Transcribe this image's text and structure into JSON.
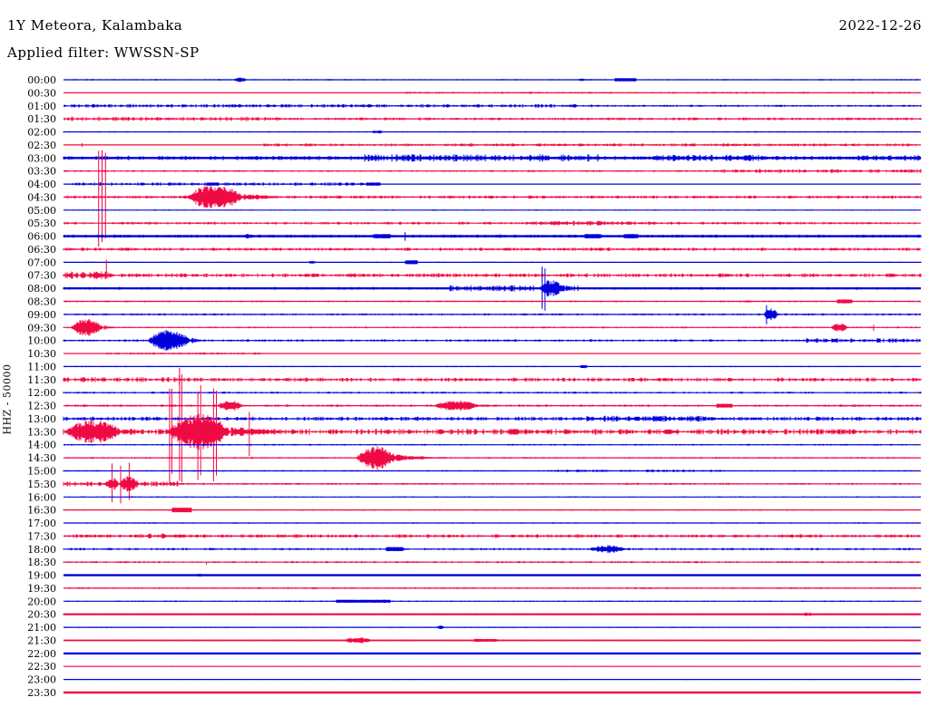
{
  "header": {
    "station": "1Y Meteora, Kalambaka",
    "filter": "Applied filter: WWSSN-SP",
    "date": "2022-12-26"
  },
  "y_axis_label": "HHZ - 50000",
  "chart_data": {
    "type": "line",
    "variant": "helicorder-seismogram",
    "title": "1Y Meteora, Kalambaka",
    "subtitle": "Applied filter: WWSSN-SP",
    "date": "2022-12-26",
    "scale_label": "HHZ - 50000",
    "minutes_per_row": 30,
    "legend_position": "none",
    "grid": false,
    "colors": {
      "even_rows": "#0000dc",
      "odd_rows": "#f00a44"
    },
    "rows": [
      {
        "time": "00:00",
        "base": 1.2,
        "noise": [
          [
            0,
            30,
            0.35
          ]
        ],
        "events": [
          {
            "k": "burst",
            "t": 5.95,
            "d": 0.5,
            "a": 2.5
          },
          {
            "k": "burst",
            "t": 18.0,
            "d": 0.3,
            "a": 1.5
          },
          {
            "k": "dash",
            "t": 19.3,
            "d": 0.75,
            "a": 1.8
          }
        ]
      },
      {
        "time": "00:30",
        "base": 1.2,
        "noise": [
          [
            12,
            30,
            0.45
          ]
        ],
        "events": []
      },
      {
        "time": "01:00",
        "base": 1.2,
        "noise": [
          [
            0,
            18.5,
            0.85
          ],
          [
            18.5,
            30,
            0.5
          ]
        ],
        "events": []
      },
      {
        "time": "01:30",
        "base": 1.2,
        "noise": [
          [
            0,
            7.5,
            1.0
          ],
          [
            7.5,
            30,
            0.65
          ]
        ],
        "events": []
      },
      {
        "time": "02:00",
        "base": 1.2,
        "noise": [
          [
            0,
            30,
            0.3
          ]
        ],
        "events": [
          {
            "k": "burst",
            "t": 10.75,
            "d": 0.45,
            "a": 2
          }
        ]
      },
      {
        "time": "02:30",
        "base": 1.2,
        "noise": [
          [
            7,
            30,
            0.7
          ]
        ],
        "events": [
          {
            "k": "spike",
            "t": 0.65,
            "a": 2.5,
            "n": 1
          }
        ]
      },
      {
        "time": "03:00",
        "base": 2.4,
        "noise": [
          [
            0,
            30,
            1.0
          ],
          [
            10.5,
            18.7,
            1.7
          ],
          [
            20.6,
            24.5,
            1.5
          ],
          [
            27.5,
            30,
            1.4
          ]
        ],
        "events": []
      },
      {
        "time": "03:30",
        "base": 1.2,
        "noise": [
          [
            0,
            30,
            0.45
          ],
          [
            23,
            30,
            0.9
          ]
        ],
        "events": []
      },
      {
        "time": "04:00",
        "base": 1.2,
        "noise": [
          [
            0.3,
            11,
            0.85
          ]
        ],
        "events": [
          {
            "k": "dash",
            "t": 5.0,
            "d": 0.45,
            "a": 1.7
          },
          {
            "k": "dash",
            "t": 10.6,
            "d": 0.5,
            "a": 1.7
          }
        ]
      },
      {
        "time": "04:30",
        "base": 1.2,
        "noise": [
          [
            0,
            30,
            0.75
          ]
        ],
        "events": [
          {
            "k": "spike",
            "t": 1.35,
            "a": 56,
            "n": 3,
            "s": 0.12
          },
          {
            "k": "burst",
            "t": 4.3,
            "d": 2.0,
            "a": 14,
            "tail": 1.6
          }
        ]
      },
      {
        "time": "05:00",
        "base": 1.2,
        "noise": [
          [
            0,
            30,
            0.3
          ]
        ],
        "events": []
      },
      {
        "time": "05:30",
        "base": 1.2,
        "noise": [
          [
            0,
            30,
            0.65
          ],
          [
            16,
            20.5,
            1.1
          ]
        ],
        "events": []
      },
      {
        "time": "06:00",
        "base": 2.4,
        "noise": [
          [
            0,
            30,
            0.75
          ]
        ],
        "events": [
          {
            "k": "burst",
            "t": 6.3,
            "d": 0.4,
            "a": 3
          },
          {
            "k": "dash",
            "t": 10.85,
            "d": 0.6,
            "a": 2.4
          },
          {
            "k": "spike",
            "t": 11.95,
            "a": 5,
            "n": 1
          },
          {
            "k": "dash",
            "t": 18.25,
            "d": 0.55,
            "a": 2.4
          },
          {
            "k": "dash",
            "t": 19.6,
            "d": 0.5,
            "a": 2.4
          }
        ]
      },
      {
        "time": "06:30",
        "base": 1.2,
        "noise": [
          [
            0,
            30,
            0.75
          ]
        ],
        "events": []
      },
      {
        "time": "07:00",
        "base": 1.2,
        "noise": [
          [
            0,
            30,
            0.3
          ]
        ],
        "events": [
          {
            "k": "burst",
            "t": 8.55,
            "d": 0.3,
            "a": 2
          },
          {
            "k": "dash",
            "t": 11.95,
            "d": 0.45,
            "a": 2.2
          }
        ]
      },
      {
        "time": "07:30",
        "base": 1.2,
        "noise": [
          [
            0,
            30,
            0.95
          ],
          [
            0,
            1.6,
            1.9
          ]
        ],
        "events": [
          {
            "k": "spike",
            "t": 1.5,
            "a": 20,
            "n": 1,
            "dir": "up"
          },
          {
            "k": "burst",
            "t": 0.85,
            "d": 0.7,
            "a": 3
          }
        ]
      },
      {
        "time": "08:00",
        "base": 2.2,
        "noise": [
          [
            0,
            30,
            0.65
          ],
          [
            13.5,
            18,
            1.4
          ]
        ],
        "events": [
          {
            "k": "burst",
            "t": 16.65,
            "d": 0.85,
            "a": 10
          },
          {
            "k": "spike",
            "t": 16.8,
            "a": 25,
            "n": 2,
            "s": 0.1
          }
        ]
      },
      {
        "time": "08:30",
        "base": 1.2,
        "noise": [
          [
            0,
            30,
            0.4
          ]
        ],
        "events": [
          {
            "k": "dash",
            "t": 27.05,
            "d": 0.55,
            "a": 2.2
          },
          {
            "k": "burst",
            "t": 23.8,
            "d": 0.3,
            "a": 1.5
          }
        ]
      },
      {
        "time": "09:00",
        "base": 1.2,
        "noise": [
          [
            0,
            30,
            0.5
          ]
        ],
        "events": [
          {
            "k": "burst",
            "t": 24.5,
            "d": 0.5,
            "a": 8
          },
          {
            "k": "spike",
            "t": 24.6,
            "a": 13,
            "n": 1
          }
        ]
      },
      {
        "time": "09:30",
        "base": 1.2,
        "noise": [
          [
            0,
            30,
            0.4
          ]
        ],
        "events": [
          {
            "k": "burst",
            "t": 0.25,
            "d": 1.15,
            "a": 10,
            "tail": 0.5
          },
          {
            "k": "burst",
            "t": 26.85,
            "d": 0.6,
            "a": 5
          },
          {
            "k": "spike",
            "t": 28.35,
            "a": 4,
            "n": 1
          }
        ]
      },
      {
        "time": "10:00",
        "base": 1.2,
        "noise": [
          [
            0,
            30,
            0.55
          ],
          [
            26,
            30,
            1.1
          ]
        ],
        "events": [
          {
            "k": "burst",
            "t": 2.95,
            "d": 1.5,
            "a": 12,
            "tail": 0.5
          }
        ]
      },
      {
        "time": "10:30",
        "base": 1.2,
        "noise": [
          [
            1.5,
            7,
            0.55
          ]
        ],
        "events": []
      },
      {
        "time": "11:00",
        "base": 1.2,
        "noise": [
          [
            0,
            30,
            0.3
          ]
        ],
        "events": [
          {
            "k": "burst",
            "t": 18.05,
            "d": 0.3,
            "a": 2.5
          }
        ]
      },
      {
        "time": "11:30",
        "base": 1.2,
        "noise": [
          [
            0,
            4,
            1.25
          ],
          [
            4,
            30,
            0.95
          ]
        ],
        "events": [
          {
            "k": "spike",
            "t": 4.05,
            "a": 6,
            "n": 1
          }
        ]
      },
      {
        "time": "12:00",
        "base": 1.2,
        "noise": [
          [
            0,
            30,
            0.5
          ]
        ],
        "events": []
      },
      {
        "time": "12:30",
        "base": 1.2,
        "noise": [
          [
            0,
            30,
            0.55
          ]
        ],
        "events": [
          {
            "k": "burst",
            "t": 5.35,
            "d": 0.95,
            "a": 6
          },
          {
            "k": "burst",
            "t": 12.95,
            "d": 1.6,
            "a": 6,
            "tail": 0.9
          },
          {
            "k": "dash",
            "t": 22.85,
            "d": 0.55,
            "a": 2.2
          }
        ]
      },
      {
        "time": "13:00",
        "base": 1.2,
        "noise": [
          [
            0,
            30,
            0.95
          ],
          [
            18.3,
            22.5,
            1.4
          ]
        ],
        "events": []
      },
      {
        "time": "13:30",
        "base": 1.2,
        "noise": [
          [
            0,
            30,
            1.4
          ]
        ],
        "events": [
          {
            "k": "burst",
            "t": 0.05,
            "d": 2.0,
            "a": 13,
            "tail": 0.6
          },
          {
            "k": "burst",
            "t": 3.65,
            "d": 2.2,
            "a": 20,
            "tail": 2.3
          },
          {
            "k": "spike",
            "t": 3.75,
            "a": 62,
            "n": 2,
            "s": 0.08
          },
          {
            "k": "spike",
            "t": 4.1,
            "a": 72,
            "n": 2,
            "s": 0.08
          },
          {
            "k": "spike",
            "t": 4.75,
            "a": 60,
            "n": 2,
            "s": 0.1
          },
          {
            "k": "spike",
            "t": 5.3,
            "a": 55,
            "n": 2,
            "s": 0.1
          },
          {
            "k": "spike",
            "t": 6.5,
            "a": 30,
            "n": 1
          },
          {
            "k": "burst",
            "t": 15.5,
            "d": 0.5,
            "a": 5
          },
          {
            "k": "burst",
            "t": 20.9,
            "d": 0.5,
            "a": 3
          }
        ]
      },
      {
        "time": "14:00",
        "base": 1.2,
        "noise": [
          [
            0,
            30,
            0.4
          ]
        ],
        "events": []
      },
      {
        "time": "14:30",
        "base": 1.2,
        "noise": [
          [
            0,
            30,
            0.4
          ]
        ],
        "events": [
          {
            "k": "burst",
            "t": 10.25,
            "d": 1.4,
            "a": 13,
            "tail": 1.8
          }
        ]
      },
      {
        "time": "15:00",
        "base": 1.2,
        "noise": [
          [
            0,
            30,
            0.35
          ],
          [
            17,
            23,
            0.65
          ]
        ],
        "events": []
      },
      {
        "time": "15:30",
        "base": 1.2,
        "noise": [
          [
            0,
            4,
            1.15
          ],
          [
            4,
            30,
            0.45
          ]
        ],
        "events": [
          {
            "k": "burst",
            "t": 1.45,
            "d": 0.5,
            "a": 7
          },
          {
            "k": "burst",
            "t": 1.95,
            "d": 0.7,
            "a": 9
          },
          {
            "k": "spike",
            "t": 2.0,
            "a": 24,
            "n": 3,
            "s": 0.3
          }
        ]
      },
      {
        "time": "16:00",
        "base": 1.2,
        "noise": [
          [
            0,
            30,
            0.3
          ]
        ],
        "events": []
      },
      {
        "time": "16:30",
        "base": 1.2,
        "noise": [
          [
            0,
            30,
            0.35
          ]
        ],
        "events": [
          {
            "k": "dash",
            "t": 3.8,
            "d": 0.7,
            "a": 2.6
          }
        ]
      },
      {
        "time": "17:00",
        "base": 1.2,
        "noise": [
          [
            0,
            30,
            0.3
          ]
        ],
        "events": []
      },
      {
        "time": "17:30",
        "base": 1.2,
        "noise": [
          [
            0,
            30,
            0.85
          ],
          [
            2.5,
            3.6,
            1.3
          ]
        ],
        "events": []
      },
      {
        "time": "18:00",
        "base": 1.2,
        "noise": [
          [
            0,
            30,
            0.55
          ]
        ],
        "events": [
          {
            "k": "burst",
            "t": 5.05,
            "d": 0.3,
            "a": 2
          },
          {
            "k": "dash",
            "t": 11.3,
            "d": 0.6,
            "a": 2.4
          },
          {
            "k": "burst",
            "t": 18.35,
            "d": 1.35,
            "a": 4.5,
            "tail": 0.3
          }
        ]
      },
      {
        "time": "18:30",
        "base": 1.2,
        "noise": [
          [
            0,
            30,
            0.5
          ]
        ],
        "events": [
          {
            "k": "spike",
            "t": 5.0,
            "a": 3,
            "n": 1,
            "dir": "down"
          }
        ]
      },
      {
        "time": "19:00",
        "base": 2.4,
        "noise": [
          [
            0,
            30,
            0.25
          ]
        ],
        "events": [
          {
            "k": "burst",
            "t": 4.6,
            "d": 0.3,
            "a": 1.8
          }
        ]
      },
      {
        "time": "19:30",
        "base": 1.2,
        "noise": [
          [
            0,
            30,
            0.4
          ]
        ],
        "events": []
      },
      {
        "time": "20:00",
        "base": 1.2,
        "noise": [
          [
            0,
            30,
            0.35
          ]
        ],
        "events": [
          {
            "k": "dash",
            "t": 9.55,
            "d": 1.9,
            "a": 1.7
          }
        ]
      },
      {
        "time": "20:30",
        "base": 2.2,
        "noise": [
          [
            0,
            30,
            0.4
          ]
        ],
        "events": [
          {
            "k": "burst",
            "t": 25.85,
            "d": 0.4,
            "a": 2.5
          }
        ]
      },
      {
        "time": "21:00",
        "base": 1.2,
        "noise": [
          [
            0,
            30,
            0.3
          ]
        ],
        "events": [
          {
            "k": "burst",
            "t": 13.05,
            "d": 0.3,
            "a": 2
          }
        ]
      },
      {
        "time": "21:30",
        "base": 1.8,
        "noise": [
          [
            0,
            30,
            0.4
          ]
        ],
        "events": [
          {
            "k": "burst",
            "t": 9.75,
            "d": 1.1,
            "a": 3.5
          },
          {
            "k": "dash",
            "t": 14.35,
            "d": 0.8,
            "a": 1.6
          }
        ]
      },
      {
        "time": "22:00",
        "base": 2.4,
        "noise": [
          [
            0,
            30,
            0.2
          ]
        ],
        "events": []
      },
      {
        "time": "22:30",
        "base": 1.2,
        "noise": [
          [
            0,
            30,
            0.25
          ]
        ],
        "events": []
      },
      {
        "time": "23:00",
        "base": 1.2,
        "noise": [
          [
            0,
            30,
            0.25
          ]
        ],
        "events": []
      },
      {
        "time": "23:30",
        "base": 2.4,
        "noise": [
          [
            0,
            30,
            0.2
          ]
        ],
        "events": []
      }
    ]
  }
}
